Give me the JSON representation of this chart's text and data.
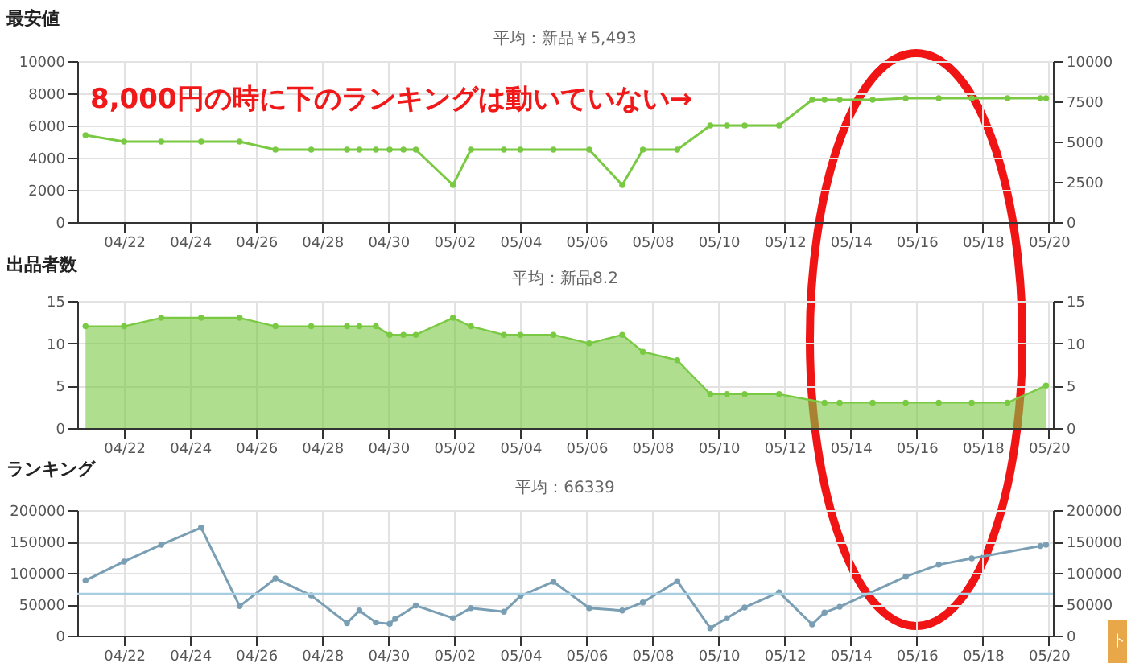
{
  "chart_data": [
    {
      "type": "line",
      "title": "最安値",
      "subtitle": "平均：新品￥5,493",
      "annotations": [
        "8,000円の時に下のランキングは動いていない→"
      ],
      "x": [
        "--04-20T20:00",
        "--04-22T00:00",
        "--04-23T03:00",
        "--04-24T08:00",
        "--04-25T12:00",
        "--04-26T14:00",
        "--04-27T16:00",
        "--04-28T18:00",
        "--04-29T03:00",
        "--04-29T15:00",
        "--04-30T01:00",
        "--04-30T11:00",
        "--04-30T20:00",
        "--05-01T23:00",
        "--05-02T12:00",
        "--05-03T12:00",
        "--05-04T00:00",
        "--05-05T00:00",
        "--05-06T02:00",
        "--05-07T02:00",
        "--05-07T17:00",
        "--05-08T18:00",
        "--05-09T18:00",
        "--05-10T06:00",
        "--05-10T19:00",
        "--05-11T20:00",
        "--05-12T20:00",
        "--05-13T05:00",
        "--05-13T16:00",
        "--05-14T16:00",
        "--05-15T16:00",
        "--05-16T16:00",
        "--05-17T16:00",
        "--05-18T18:00",
        "--05-19T18:00",
        "--05-19T22:00"
      ],
      "series": [
        {
          "color": "#7ac943",
          "values": [
            5400,
            5000,
            5000,
            5000,
            5000,
            4500,
            4500,
            4500,
            4500,
            4500,
            4500,
            4500,
            4500,
            2300,
            4500,
            4500,
            4500,
            4500,
            4500,
            2300,
            4500,
            4500,
            6000,
            6000,
            6000,
            6000,
            7600,
            7600,
            7600,
            7600,
            7700,
            7700,
            7700,
            7700,
            7700,
            7700
          ]
        }
      ],
      "xlim": [
        "--04-20T14:00",
        "--05-20T03:00"
      ],
      "xticks": [
        {
          "value": "--04-22",
          "label": "04/22"
        },
        {
          "value": "--04-24",
          "label": "04/24"
        },
        {
          "value": "--04-26",
          "label": "04/26"
        },
        {
          "value": "--04-28",
          "label": "04/28"
        },
        {
          "value": "--04-30",
          "label": "04/30"
        },
        {
          "value": "--05-02",
          "label": "05/02"
        },
        {
          "value": "--05-04",
          "label": "05/04"
        },
        {
          "value": "--05-06",
          "label": "05/06"
        },
        {
          "value": "--05-08",
          "label": "05/08"
        },
        {
          "value": "--05-10",
          "label": "05/10"
        },
        {
          "value": "--05-12",
          "label": "05/12"
        },
        {
          "value": "--05-14",
          "label": "05/14"
        },
        {
          "value": "--05-16",
          "label": "05/16"
        },
        {
          "value": "--05-18",
          "label": "05/18"
        },
        {
          "value": "--05-20",
          "label": "05/20"
        }
      ],
      "ylim": [
        0,
        10000
      ],
      "yticks": [
        0,
        2000,
        4000,
        6000,
        8000,
        10000
      ],
      "y2lim": [
        0,
        10000
      ],
      "y2ticks": [
        0,
        2500,
        5000,
        7500,
        10000
      ],
      "grid": true,
      "marker": "circle"
    },
    {
      "type": "area",
      "title": "出品者数",
      "subtitle": "平均：新品8.2",
      "x": [
        "--04-20T20:00",
        "--04-22T00:00",
        "--04-23T03:00",
        "--04-24T08:00",
        "--04-25T12:00",
        "--04-26T14:00",
        "--04-27T16:00",
        "--04-28T18:00",
        "--04-29T03:00",
        "--04-29T15:00",
        "--04-30T01:00",
        "--04-30T11:00",
        "--04-30T20:00",
        "--05-01T23:00",
        "--05-02T12:00",
        "--05-03T12:00",
        "--05-04T00:00",
        "--05-05T00:00",
        "--05-06T02:00",
        "--05-07T02:00",
        "--05-07T17:00",
        "--05-08T18:00",
        "--05-09T18:00",
        "--05-10T06:00",
        "--05-10T19:00",
        "--05-11T20:00",
        "--05-13T05:00",
        "--05-13T16:00",
        "--05-14T16:00",
        "--05-15T16:00",
        "--05-16T16:00",
        "--05-17T16:00",
        "--05-18T18:00",
        "--05-19T22:00"
      ],
      "series": [
        {
          "color": "#7ac943",
          "values": [
            12,
            12,
            13,
            13,
            13,
            12,
            12,
            12,
            12,
            12,
            11,
            11,
            11,
            13,
            12,
            11,
            11,
            11,
            10,
            11,
            9,
            8,
            4,
            4,
            4,
            4,
            3,
            3,
            3,
            3,
            3,
            3,
            3,
            5
          ]
        }
      ],
      "xlim": [
        "--04-20T14:00",
        "--05-20T03:00"
      ],
      "xticks": [
        {
          "value": "--04-22",
          "label": "04/22"
        },
        {
          "value": "--04-24",
          "label": "04/24"
        },
        {
          "value": "--04-26",
          "label": "04/26"
        },
        {
          "value": "--04-28",
          "label": "04/28"
        },
        {
          "value": "--04-30",
          "label": "04/30"
        },
        {
          "value": "--05-02",
          "label": "05/02"
        },
        {
          "value": "--05-04",
          "label": "05/04"
        },
        {
          "value": "--05-06",
          "label": "05/06"
        },
        {
          "value": "--05-08",
          "label": "05/08"
        },
        {
          "value": "--05-10",
          "label": "05/10"
        },
        {
          "value": "--05-12",
          "label": "05/12"
        },
        {
          "value": "--05-14",
          "label": "05/14"
        },
        {
          "value": "--05-16",
          "label": "05/16"
        },
        {
          "value": "--05-18",
          "label": "05/18"
        },
        {
          "value": "--05-20",
          "label": "05/20"
        }
      ],
      "ylim": [
        0,
        15
      ],
      "yticks": [
        0,
        5,
        10,
        15
      ],
      "y2lim": [
        0,
        15
      ],
      "y2ticks": [
        0,
        5,
        10,
        15
      ],
      "grid": true,
      "marker": "circle"
    },
    {
      "type": "line",
      "title": "ランキング",
      "subtitle": "平均：66339",
      "annotations": [
        "ト"
      ],
      "x": [
        "--04-20T20:00",
        "--04-22T00:00",
        "--04-23T03:00",
        "--04-24T08:00",
        "--04-25T12:00",
        "--04-26T14:00",
        "--04-27T16:00",
        "--04-28T18:00",
        "--04-29T03:00",
        "--04-29T15:00",
        "--04-30T01:00",
        "--04-30T05:00",
        "--04-30T20:00",
        "--05-01T23:00",
        "--05-02T12:00",
        "--05-03T12:00",
        "--05-04T00:00",
        "--05-05T00:00",
        "--05-06T02:00",
        "--05-07T02:00",
        "--05-07T17:00",
        "--05-08T18:00",
        "--05-09T18:00",
        "--05-10T06:00",
        "--05-10T19:00",
        "--05-11T20:00",
        "--05-12T20:00",
        "--05-13T05:00",
        "--05-13T16:00",
        "--05-15T16:00",
        "--05-16T16:00",
        "--05-17T16:00",
        "--05-19T18:00",
        "--05-19T22:00"
      ],
      "series": [
        {
          "color": "#7a9fb4",
          "values": [
            88000,
            118000,
            145000,
            172000,
            47000,
            91000,
            64000,
            20000,
            40000,
            21000,
            19000,
            27000,
            48000,
            28000,
            44000,
            38000,
            63000,
            86000,
            44000,
            40000,
            53000,
            87000,
            12000,
            28000,
            45000,
            69000,
            18000,
            37000,
            46000,
            94000,
            113000,
            123000,
            143000,
            145000
          ]
        }
      ],
      "ref_lines": [
        {
          "axis": "y",
          "value": 66339,
          "color": "#a7cde0"
        }
      ],
      "xlim": [
        "--04-20T14:00",
        "--05-20T03:00"
      ],
      "xticks": [
        {
          "value": "--04-22",
          "label": "04/22"
        },
        {
          "value": "--04-24",
          "label": "04/24"
        },
        {
          "value": "--04-26",
          "label": "04/26"
        },
        {
          "value": "--04-28",
          "label": "04/28"
        },
        {
          "value": "--04-30",
          "label": "04/30"
        },
        {
          "value": "--05-02",
          "label": "05/02"
        },
        {
          "value": "--05-04",
          "label": "05/04"
        },
        {
          "value": "--05-06",
          "label": "05/06"
        },
        {
          "value": "--05-08",
          "label": "05/08"
        },
        {
          "value": "--05-10",
          "label": "05/10"
        },
        {
          "value": "--05-12",
          "label": "05/12"
        },
        {
          "value": "--05-14",
          "label": "05/14"
        },
        {
          "value": "--05-16",
          "label": "05/16"
        },
        {
          "value": "--05-18",
          "label": "05/18"
        },
        {
          "value": "--05-20",
          "label": "05/20"
        }
      ],
      "ylim": [
        0,
        200000
      ],
      "yticks": [
        0,
        50000,
        100000,
        150000,
        200000
      ],
      "y2lim": [
        0,
        200000
      ],
      "y2ticks": [
        0,
        50000,
        100000,
        150000,
        200000
      ],
      "grid": true,
      "marker": "circle"
    }
  ]
}
